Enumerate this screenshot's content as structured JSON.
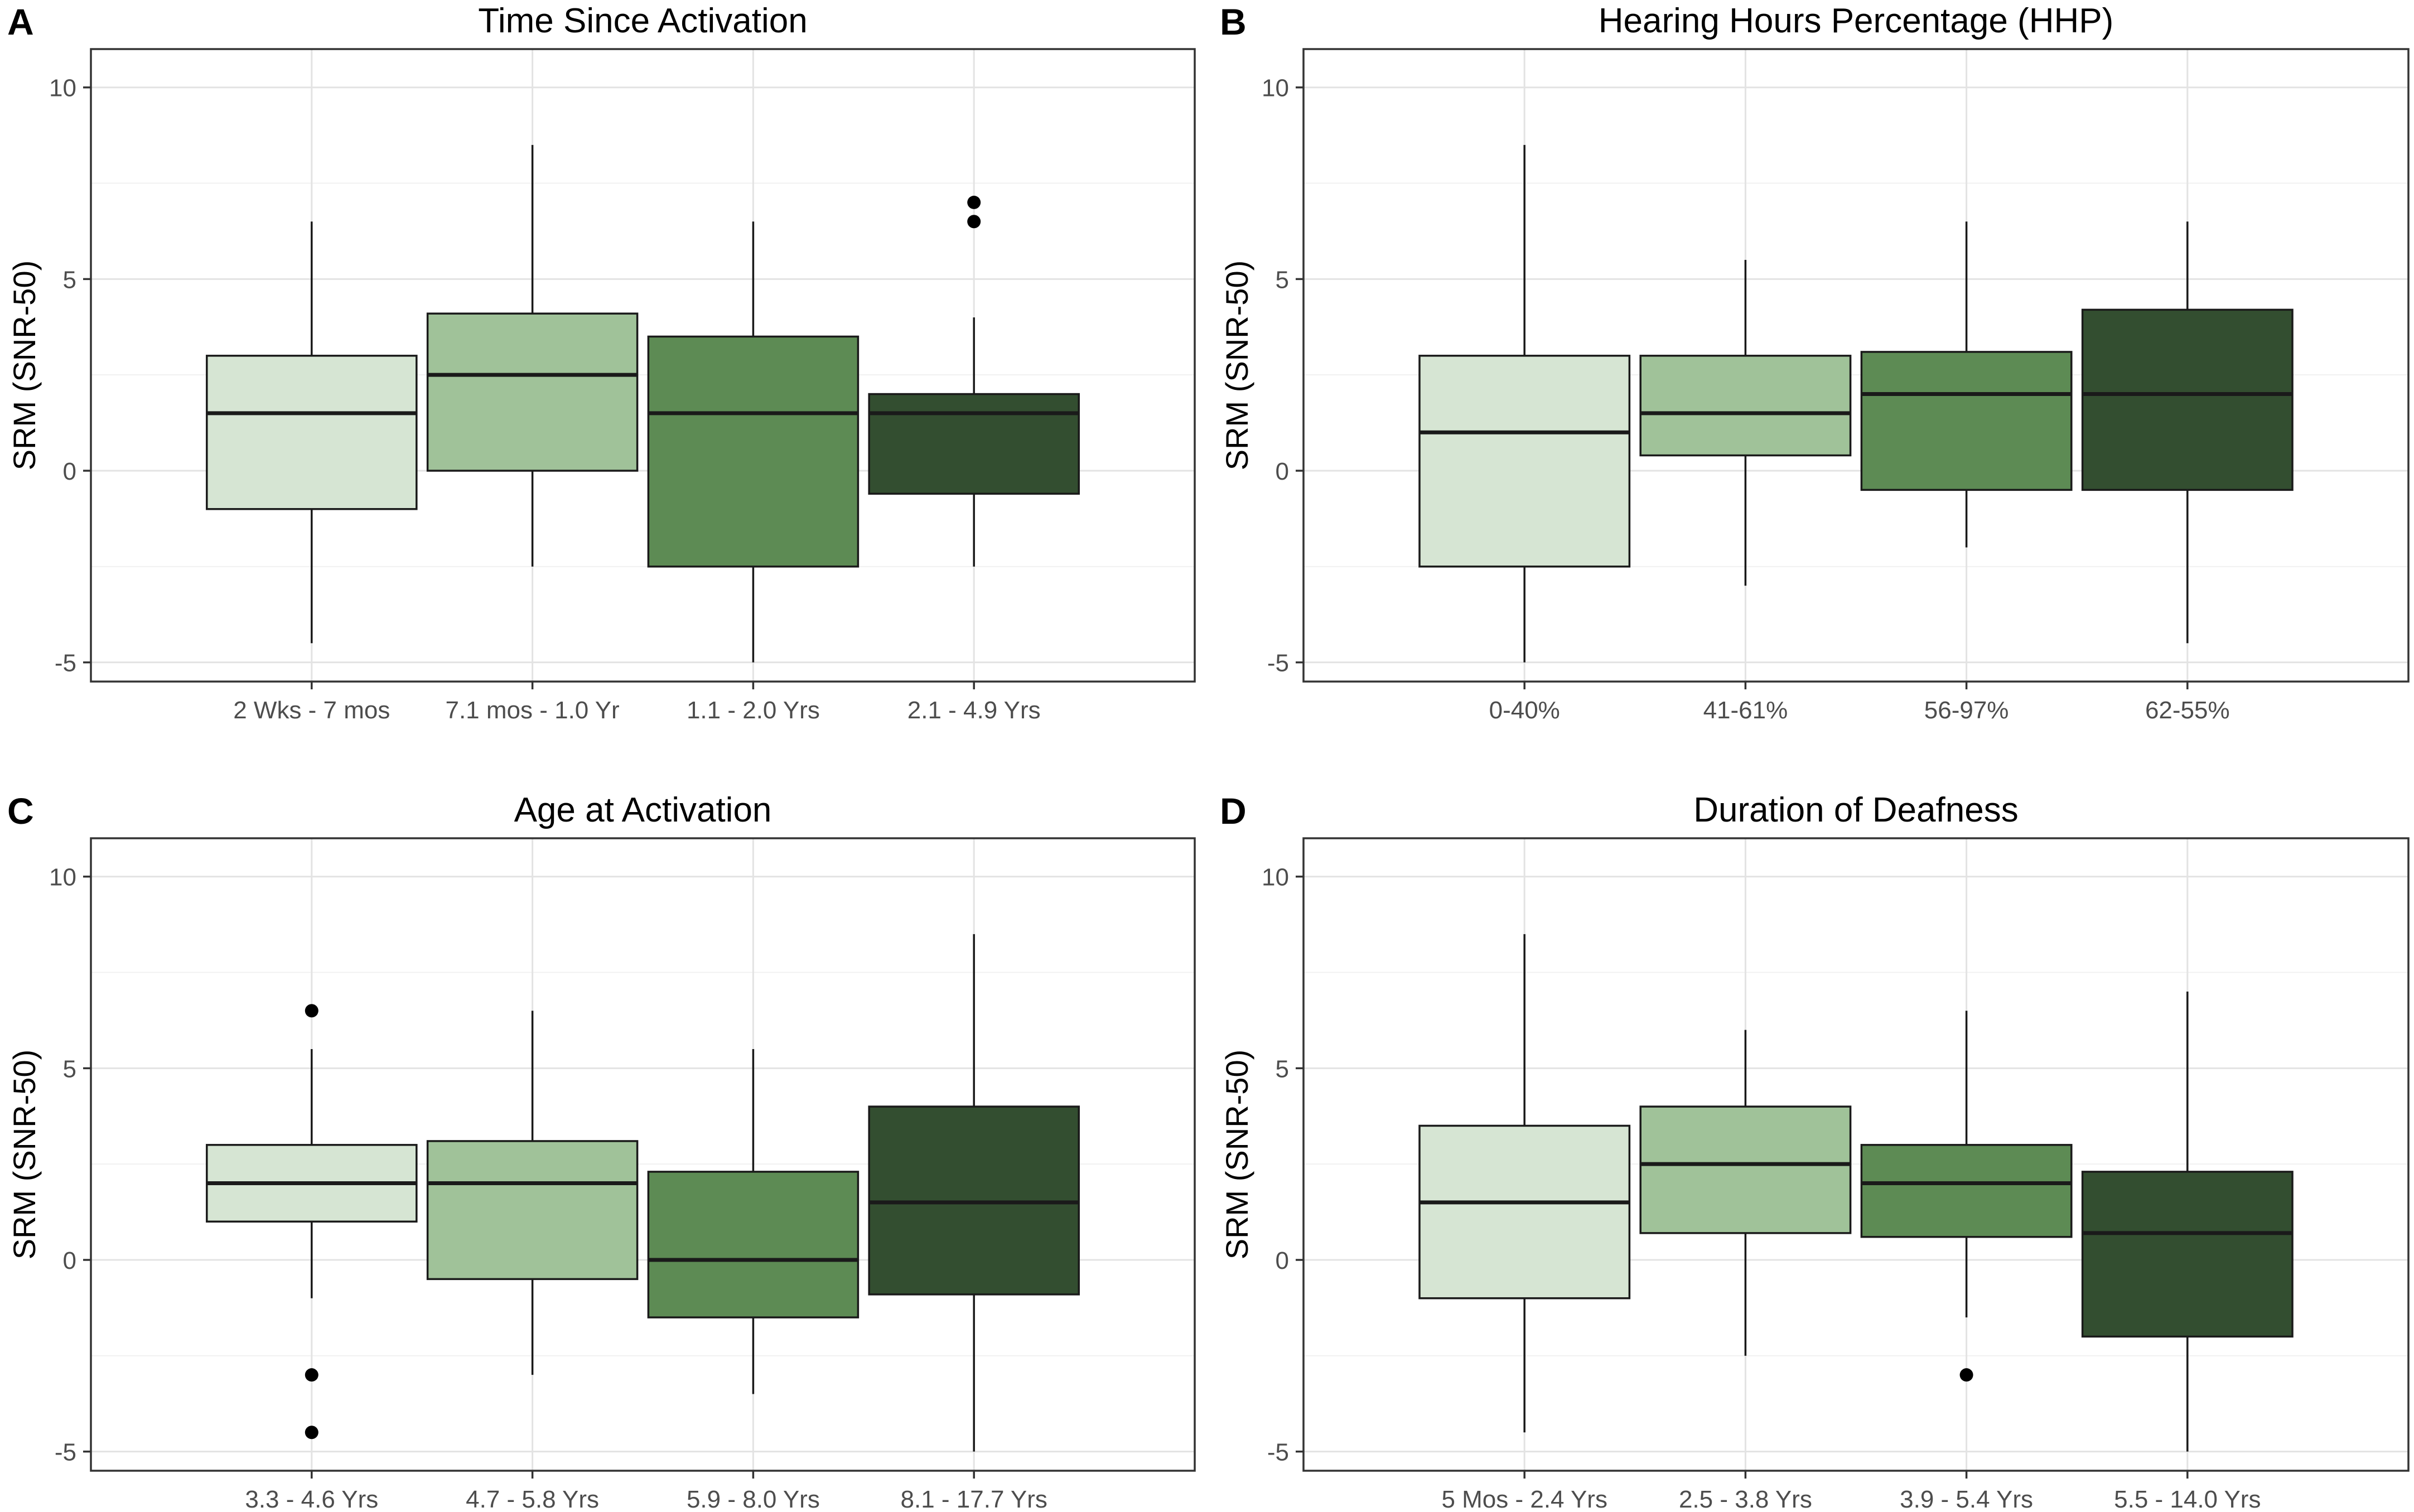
{
  "chart_data": [
    {
      "panel": "A",
      "type": "boxplot",
      "title": "Time Since Activation",
      "ylabel": "SRM (SNR-50)",
      "xlabel": "",
      "ylim": [
        -5.5,
        11
      ],
      "yticks": [
        -5,
        0,
        5,
        10
      ],
      "grid": true,
      "categories": [
        "2 Wks - 7 mos",
        "7.1 mos - 1.0 Yr",
        "1.1 - 2.0 Yrs",
        "2.1 - 4.9 Yrs"
      ],
      "colors": [
        "#d6e5d3",
        "#a0c299",
        "#5d8b54",
        "#334e30"
      ],
      "boxes": [
        {
          "whisker_low": -4.5,
          "q1": -1.0,
          "median": 1.5,
          "q3": 3.0,
          "whisker_high": 6.5,
          "outliers": []
        },
        {
          "whisker_low": -2.5,
          "q1": 0.0,
          "median": 2.5,
          "q3": 4.1,
          "whisker_high": 8.5,
          "outliers": []
        },
        {
          "whisker_low": -5.0,
          "q1": -2.5,
          "median": 1.5,
          "q3": 3.5,
          "whisker_high": 6.5,
          "outliers": []
        },
        {
          "whisker_low": -2.5,
          "q1": -0.6,
          "median": 1.5,
          "q3": 2.0,
          "whisker_high": 4.0,
          "outliers": [
            6.5,
            7.0
          ]
        }
      ]
    },
    {
      "panel": "B",
      "type": "boxplot",
      "title": "Hearing Hours Percentage (HHP)",
      "ylabel": "SRM (SNR-50)",
      "xlabel": "",
      "ylim": [
        -5.5,
        11
      ],
      "yticks": [
        -5,
        0,
        5,
        10
      ],
      "grid": true,
      "categories": [
        "0-40%",
        "41-61%",
        "56-97%",
        "62-55%"
      ],
      "colors": [
        "#d6e5d3",
        "#a0c299",
        "#5d8b54",
        "#334e30"
      ],
      "boxes": [
        {
          "whisker_low": -5.0,
          "q1": -2.5,
          "median": 1.0,
          "q3": 3.0,
          "whisker_high": 8.5,
          "outliers": []
        },
        {
          "whisker_low": -3.0,
          "q1": 0.4,
          "median": 1.5,
          "q3": 3.0,
          "whisker_high": 5.5,
          "outliers": []
        },
        {
          "whisker_low": -2.0,
          "q1": -0.5,
          "median": 2.0,
          "q3": 3.1,
          "whisker_high": 6.5,
          "outliers": []
        },
        {
          "whisker_low": -4.5,
          "q1": -0.5,
          "median": 2.0,
          "q3": 4.2,
          "whisker_high": 6.5,
          "outliers": []
        }
      ]
    },
    {
      "panel": "C",
      "type": "boxplot",
      "title": "Age at Activation",
      "ylabel": "SRM (SNR-50)",
      "xlabel": "",
      "ylim": [
        -5.5,
        11
      ],
      "yticks": [
        -5,
        0,
        5,
        10
      ],
      "grid": true,
      "categories": [
        "3.3 - 4.6 Yrs",
        "4.7 - 5.8 Yrs",
        "5.9 - 8.0 Yrs",
        "8.1 - 17.7 Yrs"
      ],
      "colors": [
        "#d6e5d3",
        "#a0c299",
        "#5d8b54",
        "#334e30"
      ],
      "boxes": [
        {
          "whisker_low": -1.0,
          "q1": 1.0,
          "median": 2.0,
          "q3": 3.0,
          "whisker_high": 5.5,
          "outliers": [
            6.5,
            -3.0,
            -4.5
          ]
        },
        {
          "whisker_low": -3.0,
          "q1": -0.5,
          "median": 2.0,
          "q3": 3.1,
          "whisker_high": 6.5,
          "outliers": []
        },
        {
          "whisker_low": -3.5,
          "q1": -1.5,
          "median": 0.0,
          "q3": 2.3,
          "whisker_high": 5.5,
          "outliers": []
        },
        {
          "whisker_low": -5.0,
          "q1": -0.9,
          "median": 1.5,
          "q3": 4.0,
          "whisker_high": 8.5,
          "outliers": []
        }
      ]
    },
    {
      "panel": "D",
      "type": "boxplot",
      "title": "Duration of Deafness",
      "ylabel": "SRM (SNR-50)",
      "xlabel": "",
      "ylim": [
        -5.5,
        11
      ],
      "yticks": [
        -5,
        0,
        5,
        10
      ],
      "grid": true,
      "categories": [
        "5 Mos - 2.4 Yrs",
        "2.5 - 3.8 Yrs",
        "3.9 - 5.4 Yrs",
        "5.5 - 14.0 Yrs"
      ],
      "colors": [
        "#d6e5d3",
        "#a0c299",
        "#5d8b54",
        "#334e30"
      ],
      "boxes": [
        {
          "whisker_low": -4.5,
          "q1": -1.0,
          "median": 1.5,
          "q3": 3.5,
          "whisker_high": 8.5,
          "outliers": []
        },
        {
          "whisker_low": -2.5,
          "q1": 0.7,
          "median": 2.5,
          "q3": 4.0,
          "whisker_high": 6.0,
          "outliers": []
        },
        {
          "whisker_low": -1.5,
          "q1": 0.6,
          "median": 2.0,
          "q3": 3.0,
          "whisker_high": 6.5,
          "outliers": [
            -3.0
          ]
        },
        {
          "whisker_low": -5.0,
          "q1": -2.0,
          "median": 0.7,
          "q3": 2.3,
          "whisker_high": 7.0,
          "outliers": []
        }
      ]
    }
  ]
}
